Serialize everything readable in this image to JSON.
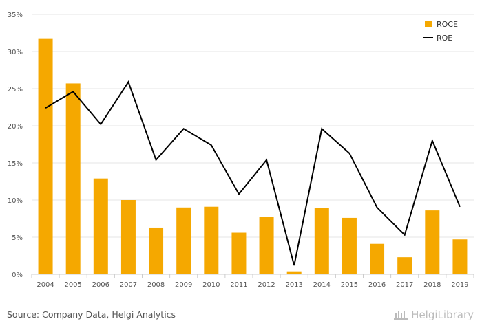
{
  "chart_data": {
    "type": "bar",
    "categories": [
      "2004",
      "2005",
      "2006",
      "2007",
      "2008",
      "2009",
      "2010",
      "2011",
      "2012",
      "2013",
      "2014",
      "2015",
      "2016",
      "2017",
      "2018",
      "2019"
    ],
    "series": [
      {
        "name": "ROCE",
        "type": "bar",
        "color": "#F5A800",
        "values": [
          31.7,
          25.7,
          12.9,
          10.0,
          6.3,
          9.0,
          9.1,
          5.6,
          7.7,
          0.4,
          8.9,
          7.6,
          4.1,
          2.3,
          8.6,
          4.7
        ]
      },
      {
        "name": "ROE",
        "type": "line",
        "color": "#000000",
        "values": [
          22.4,
          24.6,
          20.2,
          25.9,
          15.4,
          19.6,
          17.4,
          10.8,
          15.4,
          1.2,
          19.6,
          16.3,
          9.0,
          5.3,
          18.0,
          9.1
        ]
      }
    ],
    "yticks": [
      "0%",
      "5%",
      "10%",
      "15%",
      "20%",
      "25%",
      "30%",
      "35%"
    ],
    "ylim": [
      0,
      35
    ],
    "grid": true,
    "legend_position": "top-right",
    "title": "",
    "xlabel": "",
    "ylabel": ""
  },
  "footer": {
    "source": "Source: Company Data, Helgi Analytics",
    "logo": "HelgiLibrary"
  }
}
